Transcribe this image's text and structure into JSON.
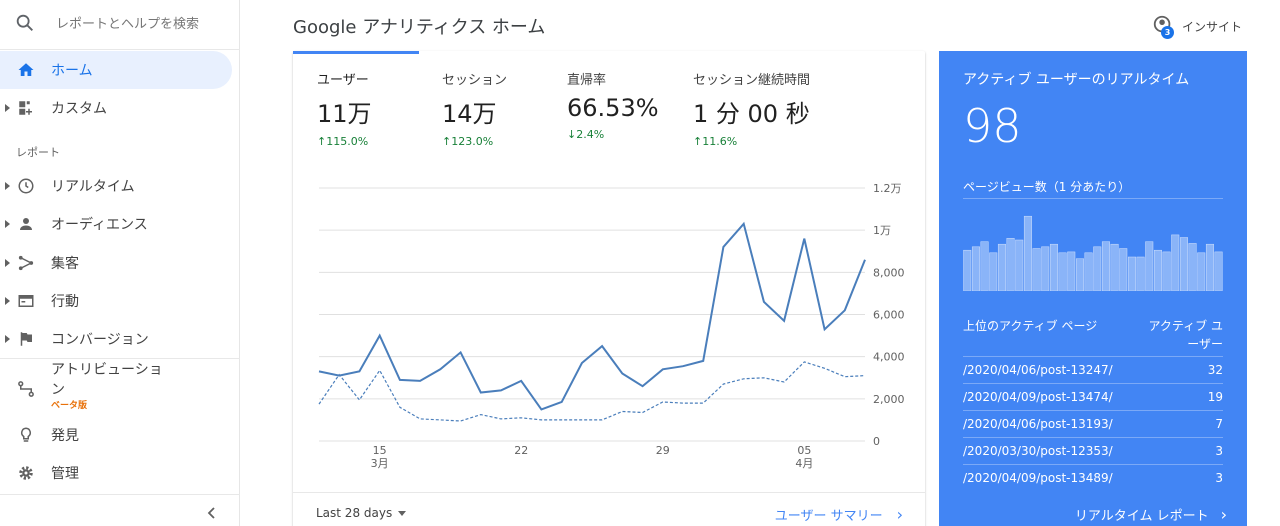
{
  "search": {
    "placeholder": "レポートとヘルプを検索"
  },
  "sidebar": {
    "items": [
      {
        "label": "ホーム",
        "icon": "home-icon",
        "active": true
      },
      {
        "label": "カスタム",
        "icon": "dashboard-icon"
      },
      {
        "label": "リアルタイム",
        "icon": "clock-icon"
      },
      {
        "label": "オーディエンス",
        "icon": "person-icon"
      },
      {
        "label": "集客",
        "icon": "acquisition-icon"
      },
      {
        "label": "行動",
        "icon": "behavior-icon"
      },
      {
        "label": "コンバージョン",
        "icon": "flag-icon"
      },
      {
        "label": "アトリビューション",
        "icon": "attribution-icon"
      },
      {
        "label": "発見",
        "icon": "lightbulb-icon"
      },
      {
        "label": "管理",
        "icon": "gear-icon"
      }
    ],
    "section_label": "レポート",
    "beta_label": "ベータ版"
  },
  "header": {
    "title": "Google アナリティクス ホーム",
    "insight_label": "インサイト",
    "insight_count": "3"
  },
  "metrics": [
    {
      "label": "ユーザー",
      "value": "11万",
      "change": "115.0%"
    },
    {
      "label": "セッション",
      "value": "14万",
      "change": "123.0%"
    },
    {
      "label": "直帰率",
      "value": "66.53%",
      "change": "2.4%"
    },
    {
      "label": "セッション継続時間",
      "value": "1 分 00 秒",
      "change": "11.6%"
    }
  ],
  "chart_data": {
    "type": "line",
    "x": [
      "3/12",
      "3/13",
      "3/14",
      "3/15",
      "3/16",
      "3/17",
      "3/18",
      "3/19",
      "3/20",
      "3/21",
      "3/22",
      "3/23",
      "3/24",
      "3/25",
      "3/26",
      "3/27",
      "3/28",
      "3/29",
      "3/30",
      "3/31",
      "4/1",
      "4/2",
      "4/3",
      "4/4",
      "4/5",
      "4/6",
      "4/7",
      "4/8"
    ],
    "x_tick_labels": [
      {
        "index": 3,
        "day": "15",
        "month": "3月"
      },
      {
        "index": 10,
        "day": "22",
        "month": ""
      },
      {
        "index": 17,
        "day": "29",
        "month": ""
      },
      {
        "index": 24,
        "day": "05",
        "month": "4月"
      }
    ],
    "y_tick_labels": [
      "0",
      "2,000",
      "4,000",
      "6,000",
      "8,000",
      "1万",
      "1.2万"
    ],
    "ylim": [
      0,
      12000
    ],
    "series": [
      {
        "values": [
          3300,
          3100,
          3300,
          5000,
          2900,
          2850,
          3400,
          4200,
          2300,
          2400,
          2850,
          1500,
          1850,
          3700,
          4500,
          3200,
          2600,
          3400,
          3550,
          3800,
          9200,
          10300,
          6600,
          5700,
          9600,
          5300,
          6200,
          8600
        ],
        "style": "solid"
      },
      {
        "values": [
          1750,
          3150,
          1950,
          3350,
          1600,
          1050,
          1000,
          950,
          1250,
          1050,
          1100,
          1000,
          1000,
          1000,
          1000,
          1400,
          1350,
          1850,
          1800,
          1800,
          2700,
          2950,
          3000,
          2800,
          3750,
          3450,
          3050,
          3100
        ],
        "style": "dashed"
      }
    ]
  },
  "footer": {
    "date_range": "Last 28 days",
    "summary_link": "ユーザー サマリー"
  },
  "realtime": {
    "title": "アクティブ ユーザーのリアルタイム",
    "count": "98",
    "pageviews_label": "ページビュー数（1 分あたり）",
    "bars": [
      0.48,
      0.52,
      0.58,
      0.45,
      0.55,
      0.62,
      0.6,
      0.88,
      0.5,
      0.52,
      0.55,
      0.45,
      0.46,
      0.38,
      0.45,
      0.52,
      0.58,
      0.55,
      0.5,
      0.4,
      0.4,
      0.58,
      0.48,
      0.46,
      0.66,
      0.63,
      0.56,
      0.45,
      0.55,
      0.46
    ],
    "table_header_left": "上位のアクティブ ページ",
    "table_header_right": "アクティブ ユーザー",
    "rows": [
      {
        "path": "/2020/04/06/post-13247/",
        "count": "32"
      },
      {
        "path": "/2020/04/09/post-13474/",
        "count": "19"
      },
      {
        "path": "/2020/04/06/post-13193/",
        "count": "7"
      },
      {
        "path": "/2020/03/30/post-12353/",
        "count": "3"
      },
      {
        "path": "/2020/04/09/post-13489/",
        "count": "3"
      }
    ],
    "report_link": "リアルタイム レポート"
  }
}
